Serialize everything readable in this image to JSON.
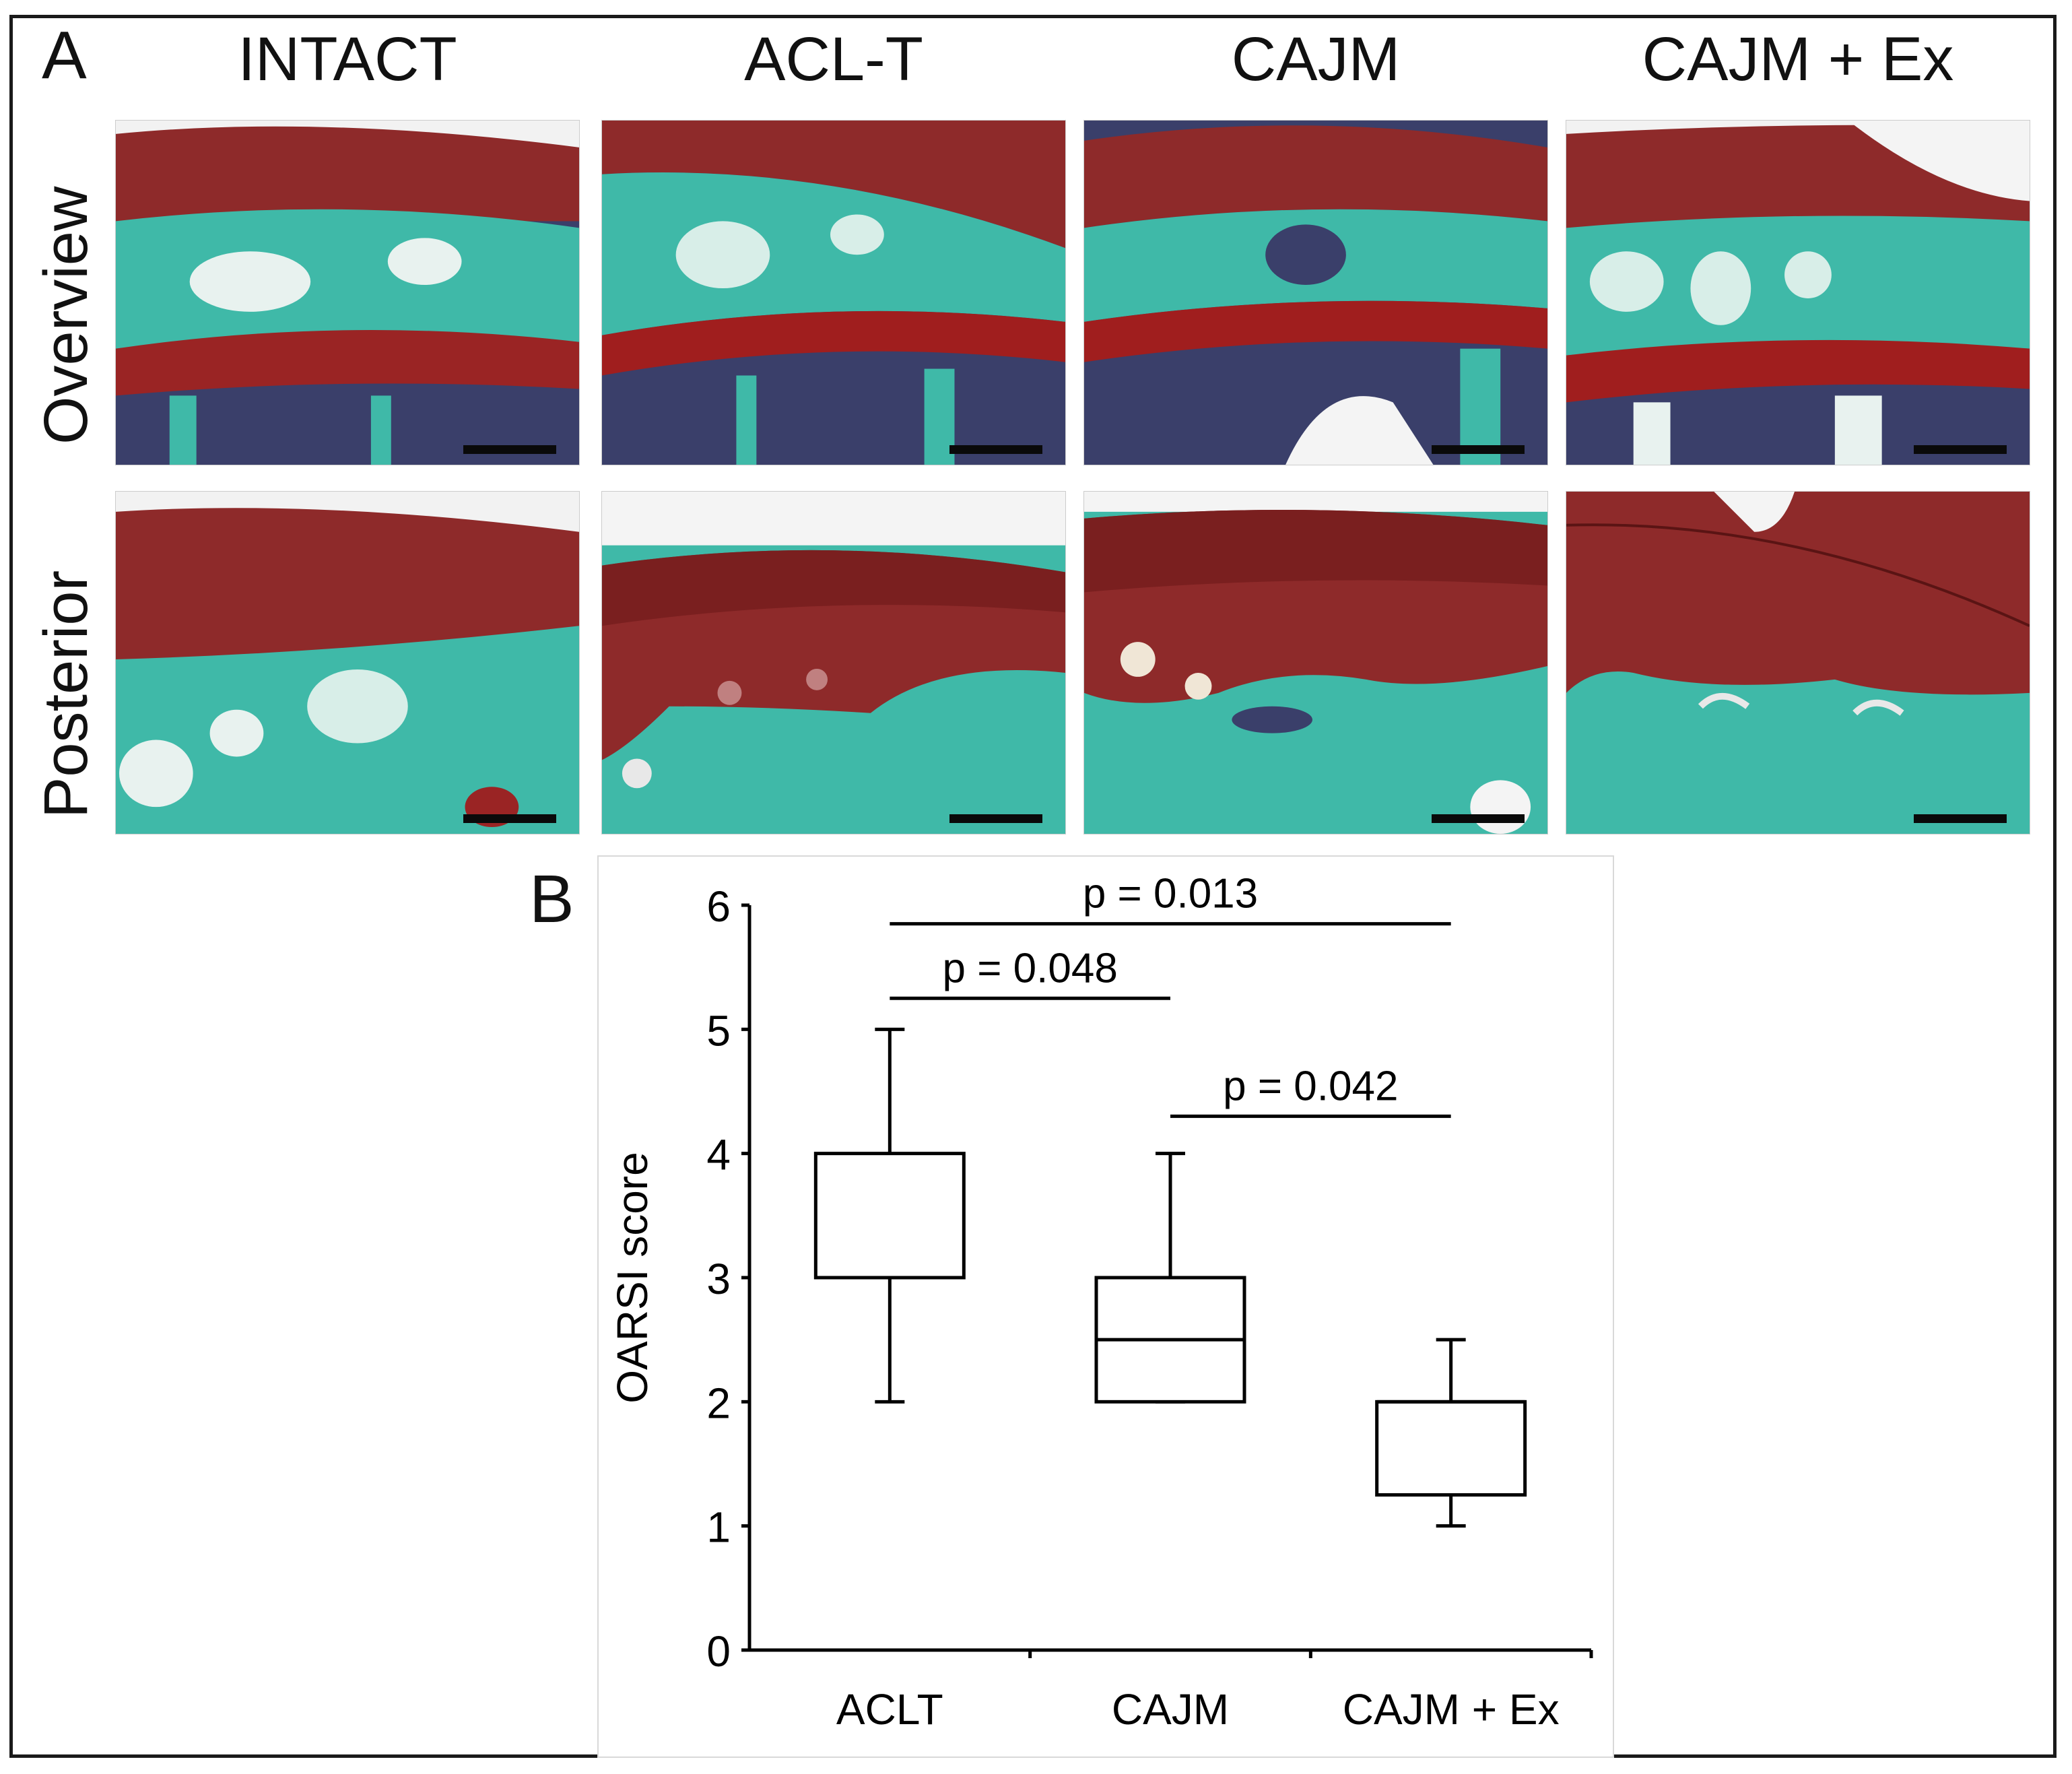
{
  "figure": {
    "panel_a_label": "A",
    "panel_b_label": "B",
    "column_headers": [
      "INTACT",
      "ACL-T",
      "CAJM",
      "CAJM + Ex"
    ],
    "row_labels": [
      "Overview",
      "Posterior"
    ],
    "colors": {
      "cartilage_red": "#8e2a2a",
      "bone_green": "#3fb9a8",
      "marrow_navy": "#3a3f6a",
      "pale_matrix": "#d8eee8"
    }
  },
  "chart_data": {
    "type": "box",
    "categories": [
      "ACLT",
      "CAJM",
      "CAJM + Ex"
    ],
    "ylabel": "OARSI score",
    "ylim": [
      0,
      6
    ],
    "yticks": [
      "0",
      "1",
      "2",
      "3",
      "4",
      "5",
      "6"
    ],
    "boxes": [
      {
        "category": "ACLT",
        "whisker_low": 2,
        "q1": 3,
        "median": 3,
        "q3": 4,
        "whisker_high": 5
      },
      {
        "category": "CAJM",
        "whisker_low": 2,
        "q1": 2,
        "median": 2.5,
        "q3": 3,
        "whisker_high": 4
      },
      {
        "category": "CAJM + Ex",
        "whisker_low": 1,
        "q1": 1.25,
        "median": 2,
        "q3": 2,
        "whisker_high": 2.5
      }
    ],
    "comparisons": [
      {
        "from": "ACLT",
        "to": "CAJM + Ex",
        "y": 5.85,
        "label": "p = 0.013"
      },
      {
        "from": "ACLT",
        "to": "CAJM",
        "y": 5.25,
        "label": "p = 0.048"
      },
      {
        "from": "CAJM",
        "to": "CAJM + Ex",
        "y": 4.3,
        "label": "p = 0.042"
      }
    ]
  }
}
